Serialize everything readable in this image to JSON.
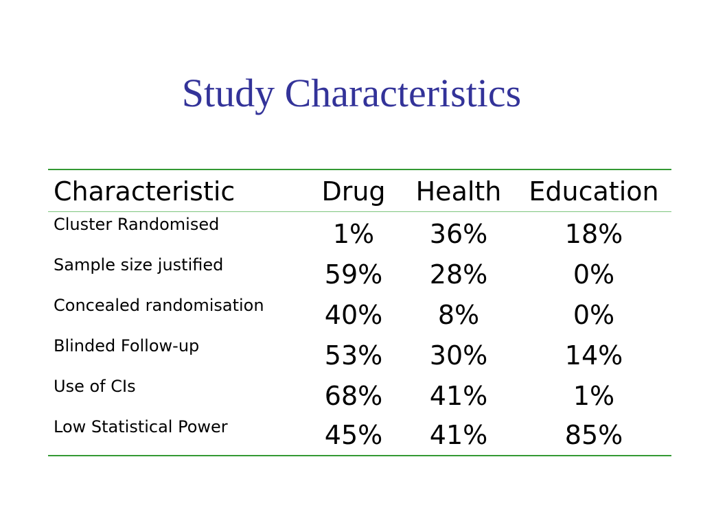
{
  "title": "Study Characteristics",
  "table": {
    "headers": {
      "characteristic": "Characteristic",
      "drug": "Drug",
      "health": "Health",
      "education": "Education"
    },
    "rows": [
      {
        "label": "Cluster  Randomised",
        "drug": "1%",
        "health": "36%",
        "education": "18%"
      },
      {
        "label": "Sample size justified",
        "drug": "59%",
        "health": "28%",
        "education": "0%"
      },
      {
        "label": "Concealed randomisation",
        "drug": "40%",
        "health": "8%",
        "education": "0%"
      },
      {
        "label": "Blinded Follow-up",
        "drug": "53%",
        "health": "30%",
        "education": "14%"
      },
      {
        "label": "Use of CIs",
        "drug": "68%",
        "health": "41%",
        "education": "1%"
      },
      {
        "label": "Low Statistical Power",
        "drug": "45%",
        "health": "41%",
        "education": "85%"
      }
    ]
  },
  "colors": {
    "title": "#333399",
    "rule": "#339933"
  }
}
